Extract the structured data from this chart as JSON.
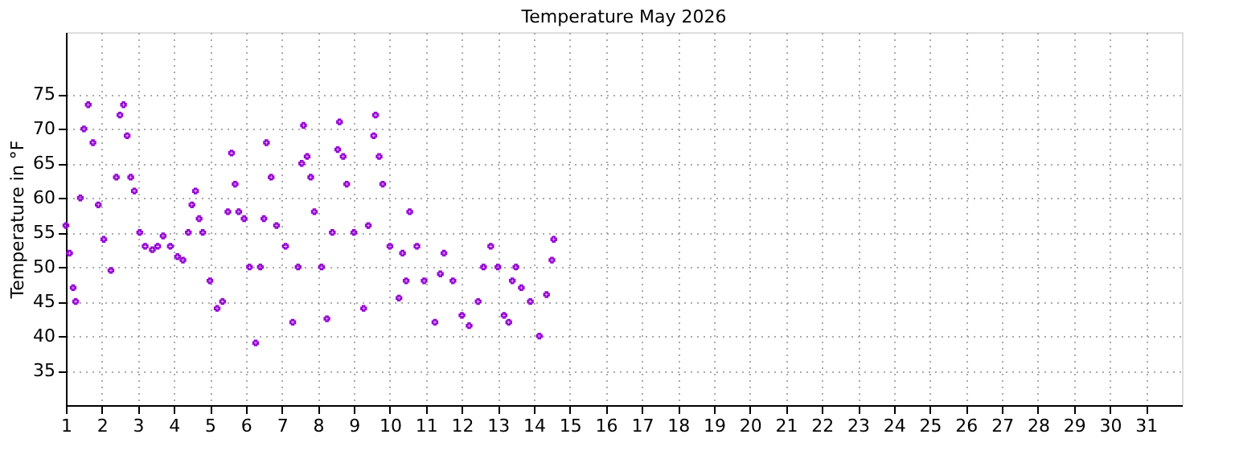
{
  "chart_data": {
    "type": "scatter",
    "title": "Temperature May 2026",
    "ylabel": "Temperature in °F",
    "marker": "cross",
    "grid": true,
    "xlim": [
      1,
      32
    ],
    "xticks": [
      1,
      2,
      3,
      4,
      5,
      6,
      7,
      8,
      9,
      10,
      11,
      12,
      13,
      14,
      15,
      16,
      17,
      18,
      19,
      20,
      21,
      22,
      23,
      24,
      25,
      26,
      27,
      28,
      29,
      30,
      31
    ],
    "ylim": [
      30,
      84
    ],
    "yticks": [
      35,
      40,
      45,
      50,
      55,
      60,
      65,
      70,
      75
    ],
    "series": [
      {
        "color": "#9400d3",
        "x": [
          1.0,
          1.1,
          1.2,
          1.27,
          1.4,
          1.5,
          1.62,
          1.75,
          1.9,
          2.05,
          2.25,
          2.4,
          2.5,
          2.6,
          2.7,
          2.8,
          2.9,
          3.05,
          3.2,
          3.4,
          3.55,
          3.7,
          3.9,
          4.1,
          4.25,
          4.4,
          4.5,
          4.6,
          4.7,
          4.8,
          5.0,
          5.2,
          5.35,
          5.5,
          5.6,
          5.7,
          5.8,
          5.95,
          6.1,
          6.27,
          6.4,
          6.5,
          6.57,
          6.7,
          6.85,
          7.1,
          7.3,
          7.45,
          7.55,
          7.6,
          7.7,
          7.8,
          7.9,
          8.1,
          8.25,
          8.4,
          8.55,
          8.6,
          8.7,
          8.8,
          9.0,
          9.27,
          9.4,
          9.55,
          9.6,
          9.7,
          9.8,
          10.0,
          10.25,
          10.35,
          10.45,
          10.55,
          10.75,
          10.95,
          11.25,
          11.4,
          11.5,
          11.75,
          12.0,
          12.2,
          12.45,
          12.6,
          12.8,
          13.0,
          13.17,
          13.3,
          13.4,
          13.5,
          13.65,
          13.9,
          14.15,
          14.35,
          14.5,
          14.55
        ],
        "values": [
          56,
          52,
          47,
          45,
          60,
          70,
          73.5,
          68,
          59,
          54,
          49.5,
          63,
          72,
          73.5,
          69,
          63,
          61,
          55,
          53,
          52.5,
          53,
          54.5,
          53,
          51.5,
          51,
          55,
          59,
          61,
          57,
          55,
          48,
          44,
          45,
          58,
          66.5,
          62,
          58,
          57,
          50,
          39,
          50,
          57,
          68,
          63,
          56,
          53,
          42,
          50,
          65,
          70.5,
          66,
          63,
          58,
          50,
          42.5,
          55,
          67,
          71,
          66,
          62,
          55,
          44,
          56,
          69,
          72,
          66,
          62,
          53,
          45.5,
          52,
          48,
          58,
          53,
          48,
          42,
          49,
          52,
          48,
          43,
          41.5,
          45,
          50,
          53,
          50,
          43,
          42,
          48,
          50,
          47,
          45,
          40,
          46,
          51,
          54
        ]
      }
    ]
  }
}
